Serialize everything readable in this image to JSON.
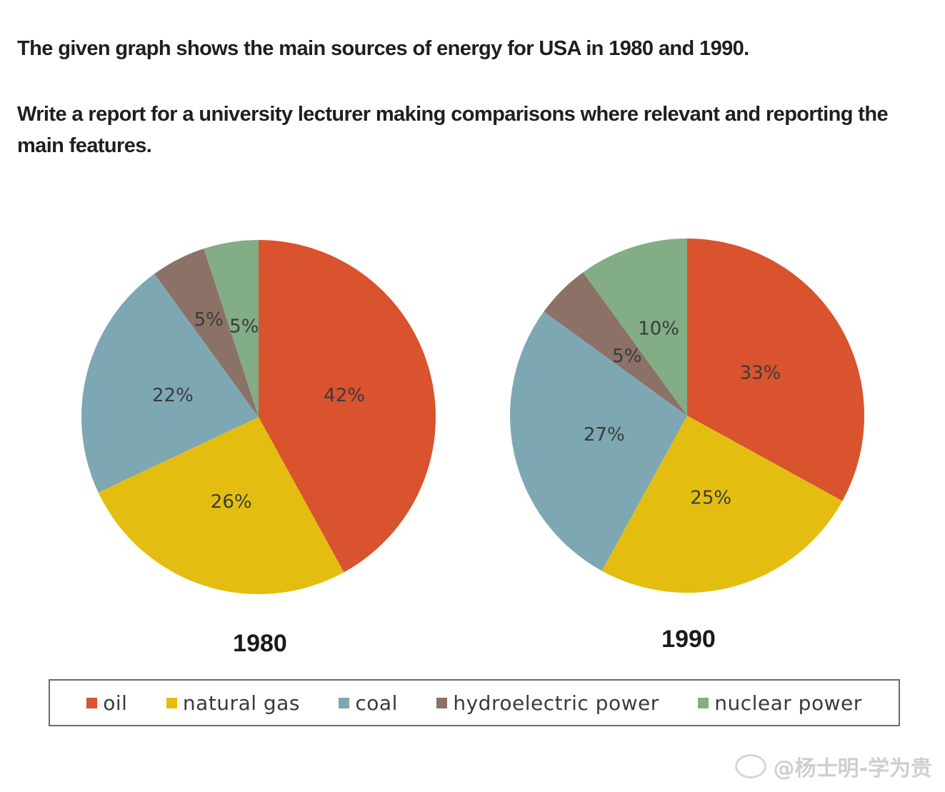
{
  "prompt": {
    "line1": "The given graph shows the main sources of energy for USA in 1980 and 1990.",
    "line2": "Write a report for a university lecturer making comparisons where relevant and reporting the main features."
  },
  "colors": {
    "oil": "#d9532e",
    "natural gas": "#e3be11",
    "coal": "#7ea7b4",
    "hydroelectric power": "#8b7166",
    "nuclear power": "#82ad85"
  },
  "chart_data": [
    {
      "type": "pie",
      "title": "1980",
      "categories": [
        "oil",
        "natural gas",
        "coal",
        "hydroelectric power",
        "nuclear power"
      ],
      "values": [
        42,
        26,
        22,
        5,
        5
      ],
      "labels": [
        "42%",
        "26%",
        "22%",
        "5%",
        "5%"
      ]
    },
    {
      "type": "pie",
      "title": "1990",
      "categories": [
        "oil",
        "natural gas",
        "coal",
        "hydroelectric power",
        "nuclear power"
      ],
      "values": [
        33,
        25,
        27,
        5,
        10
      ],
      "labels": [
        "33%",
        "25%",
        "27%",
        "5%",
        "10%"
      ]
    }
  ],
  "legend": {
    "items": [
      "oil",
      "natural gas",
      "coal",
      "hydroelectric power",
      "nuclear power"
    ]
  },
  "watermark": {
    "text": "@杨士明-学为贵"
  }
}
